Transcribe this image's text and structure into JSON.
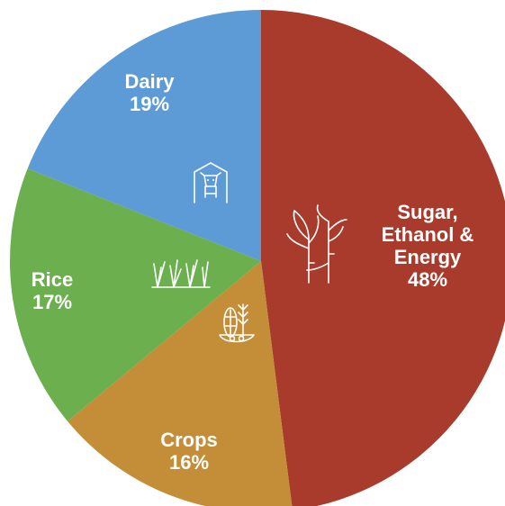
{
  "chart_data": {
    "type": "pie",
    "title": "",
    "slices": [
      {
        "label_lines": [
          "Sugar,",
          "Ethanol &",
          "Energy"
        ],
        "value": 48,
        "value_label": "48%",
        "color": "#A83B2B",
        "icon": "sugarcane-icon"
      },
      {
        "label_lines": [
          "Crops"
        ],
        "value": 16,
        "value_label": "16%",
        "color": "#C48E38",
        "icon": "grains-icon"
      },
      {
        "label_lines": [
          "Rice"
        ],
        "value": 17,
        "value_label": "17%",
        "color": "#6CAF4E",
        "icon": "rice-plant-icon"
      },
      {
        "label_lines": [
          "Dairy"
        ],
        "value": 19,
        "value_label": "19%",
        "color": "#5C9BD5",
        "icon": "cow-barn-icon"
      }
    ],
    "start_angle_deg": 0,
    "direction": "clockwise",
    "legend": "none"
  }
}
